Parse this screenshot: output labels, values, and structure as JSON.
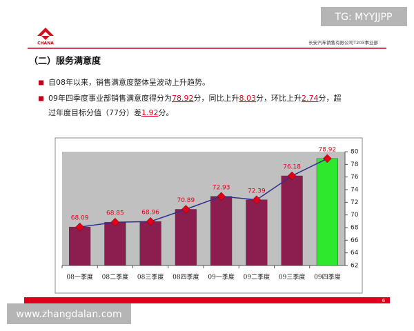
{
  "watermark_top": "TG: MYYJJPP",
  "watermark_bottom": "www.zhangdalan.com",
  "logo_text": "CHANA",
  "company": "长安汽车销售有限公司T203事业部",
  "title": "（二）服务满意度",
  "bullets": [
    {
      "lines": [
        [
          {
            "text": "自08年以来，销售满意度整体呈波动上升趋势。"
          }
        ]
      ]
    },
    {
      "lines": [
        [
          {
            "text": "09年四季度事业部销售满意度得分为"
          },
          {
            "text": "78.92",
            "highlight": true
          },
          {
            "text": "分，同比上升"
          },
          {
            "text": "8.03",
            "highlight": true
          },
          {
            "text": "分，环比上升"
          },
          {
            "text": "2.74",
            "highlight": true
          },
          {
            "text": "分，超"
          }
        ],
        [
          {
            "text": "过年度目标分值（77分）差"
          },
          {
            "text": "1.92",
            "highlight": true
          },
          {
            "text": "分。"
          }
        ]
      ]
    }
  ],
  "page_number": "6",
  "chart_data": {
    "type": "bar",
    "categories": [
      "08一季度",
      "08二季度",
      "08三季度",
      "08四季度",
      "09一季度",
      "09二季度",
      "09三季度",
      "09四季度"
    ],
    "values": [
      68.09,
      68.85,
      68.96,
      70.89,
      72.93,
      72.39,
      76.18,
      78.92
    ],
    "colors": [
      "#8c1d4f",
      "#8c1d4f",
      "#8c1d4f",
      "#8c1d4f",
      "#8c1d4f",
      "#8c1d4f",
      "#8c1d4f",
      "#2ee82e"
    ],
    "line": true,
    "line_color": "#2e3192",
    "marker_color": "#e0001b",
    "label_color": "#e0001b",
    "ylim": [
      62,
      80
    ],
    "yticks": [
      62,
      64,
      66,
      68,
      70,
      72,
      74,
      76,
      78,
      80
    ],
    "y_axis_side": "right",
    "grid": false
  }
}
